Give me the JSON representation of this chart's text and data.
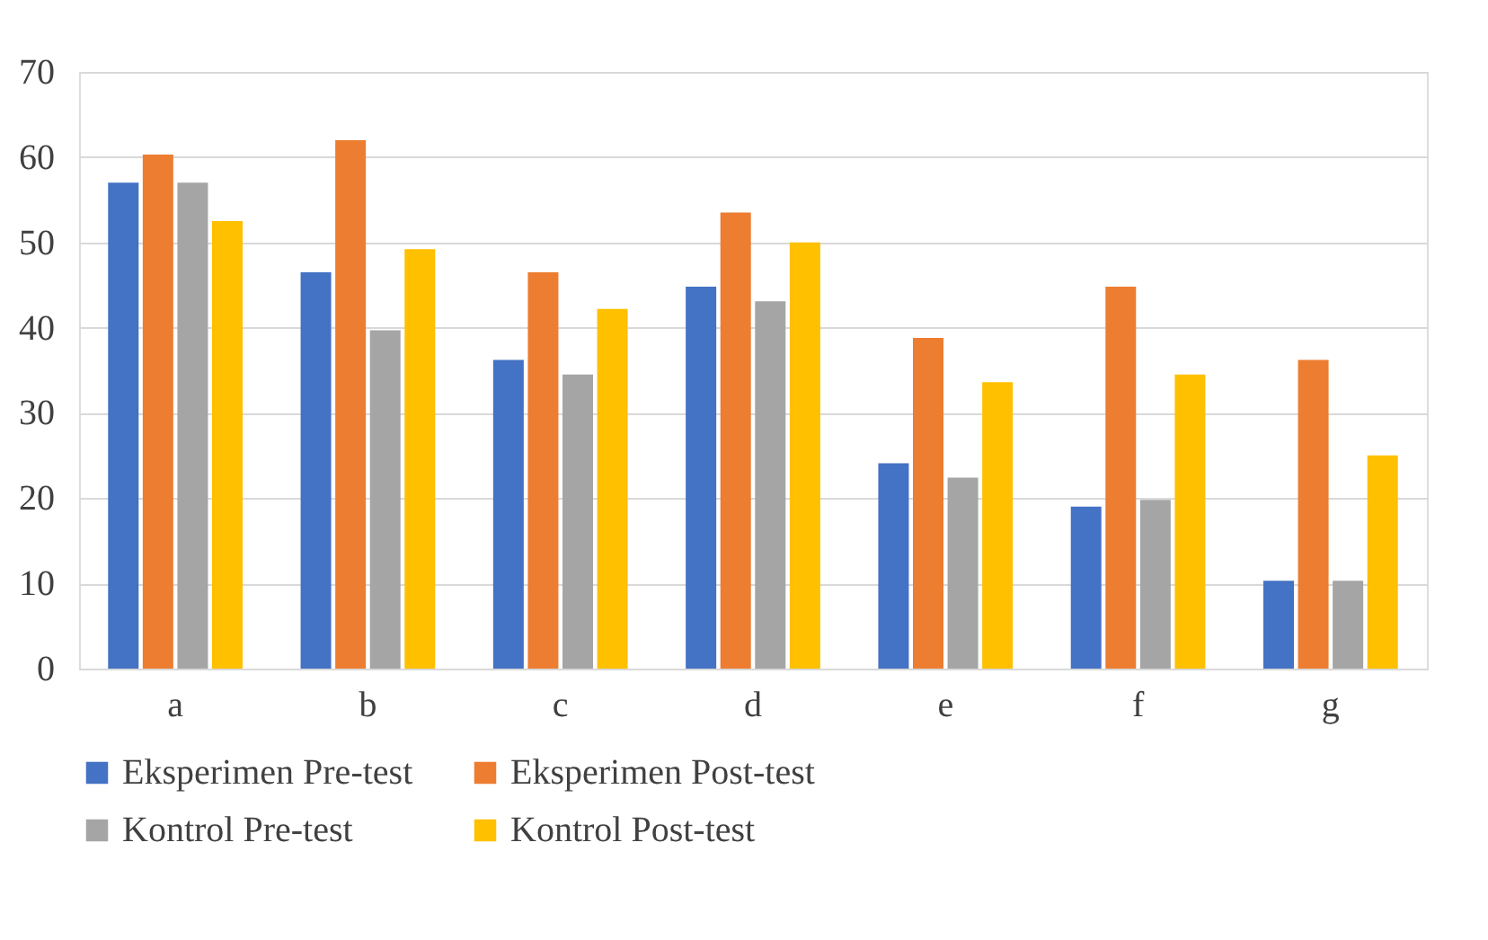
{
  "chart_data": {
    "type": "bar",
    "categories": [
      "a",
      "b",
      "c",
      "d",
      "e",
      "f",
      "g"
    ],
    "series": [
      {
        "name": "Eksperimen Pre-test",
        "color": "#4472c4",
        "values": [
          57,
          46.5,
          36.2,
          44.8,
          24.1,
          19,
          10.3
        ]
      },
      {
        "name": "Eksperimen Post-test",
        "color": "#ed7d31",
        "values": [
          60.3,
          62,
          46.5,
          53.5,
          38.8,
          44.8,
          36.2
        ]
      },
      {
        "name": "Kontrol Pre-test",
        "color": "#a5a5a5",
        "values": [
          57,
          39.7,
          34.5,
          43.1,
          22.4,
          19.8,
          10.3
        ]
      },
      {
        "name": "Kontrol Post-test",
        "color": "#ffc000",
        "values": [
          52.5,
          49.2,
          42.2,
          50,
          33.6,
          34.5,
          25
        ]
      }
    ],
    "ylim": [
      0,
      70
    ],
    "yticks": [
      0,
      10,
      20,
      30,
      40,
      50,
      60,
      70
    ],
    "grid": "y",
    "legend": "bottom"
  }
}
